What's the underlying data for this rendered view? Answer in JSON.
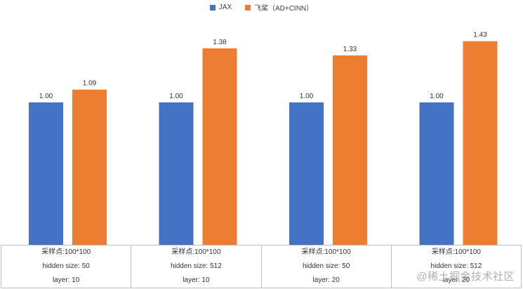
{
  "chart_data": {
    "type": "bar",
    "categories": [
      [
        "采样点:100*100",
        "hidden size: 50",
        "layer: 10"
      ],
      [
        "采样点:100*100",
        "hidden size: 512",
        "layer: 10"
      ],
      [
        "采样点:100*100",
        "hidden size: 50",
        "layer: 20"
      ],
      [
        "采样点:100*100",
        "hidden size: 512",
        "layer: 20"
      ]
    ],
    "series": [
      {
        "name": "JAX",
        "color": "#4472C4",
        "values": [
          1.0,
          1.0,
          1.0,
          1.0
        ],
        "labels": [
          "1.00",
          "1.00",
          "1.00",
          "1.00"
        ]
      },
      {
        "name": "飞桨（AD+CINN）",
        "color": "#ED7D31",
        "values": [
          1.09,
          1.38,
          1.33,
          1.43
        ],
        "labels": [
          "1.09",
          "1.38",
          "1.33",
          "1.43"
        ]
      }
    ],
    "ylim": [
      0,
      1.5
    ],
    "legend_position": "top-center",
    "grid": false
  },
  "watermark": "@稀土掘金技术社区"
}
